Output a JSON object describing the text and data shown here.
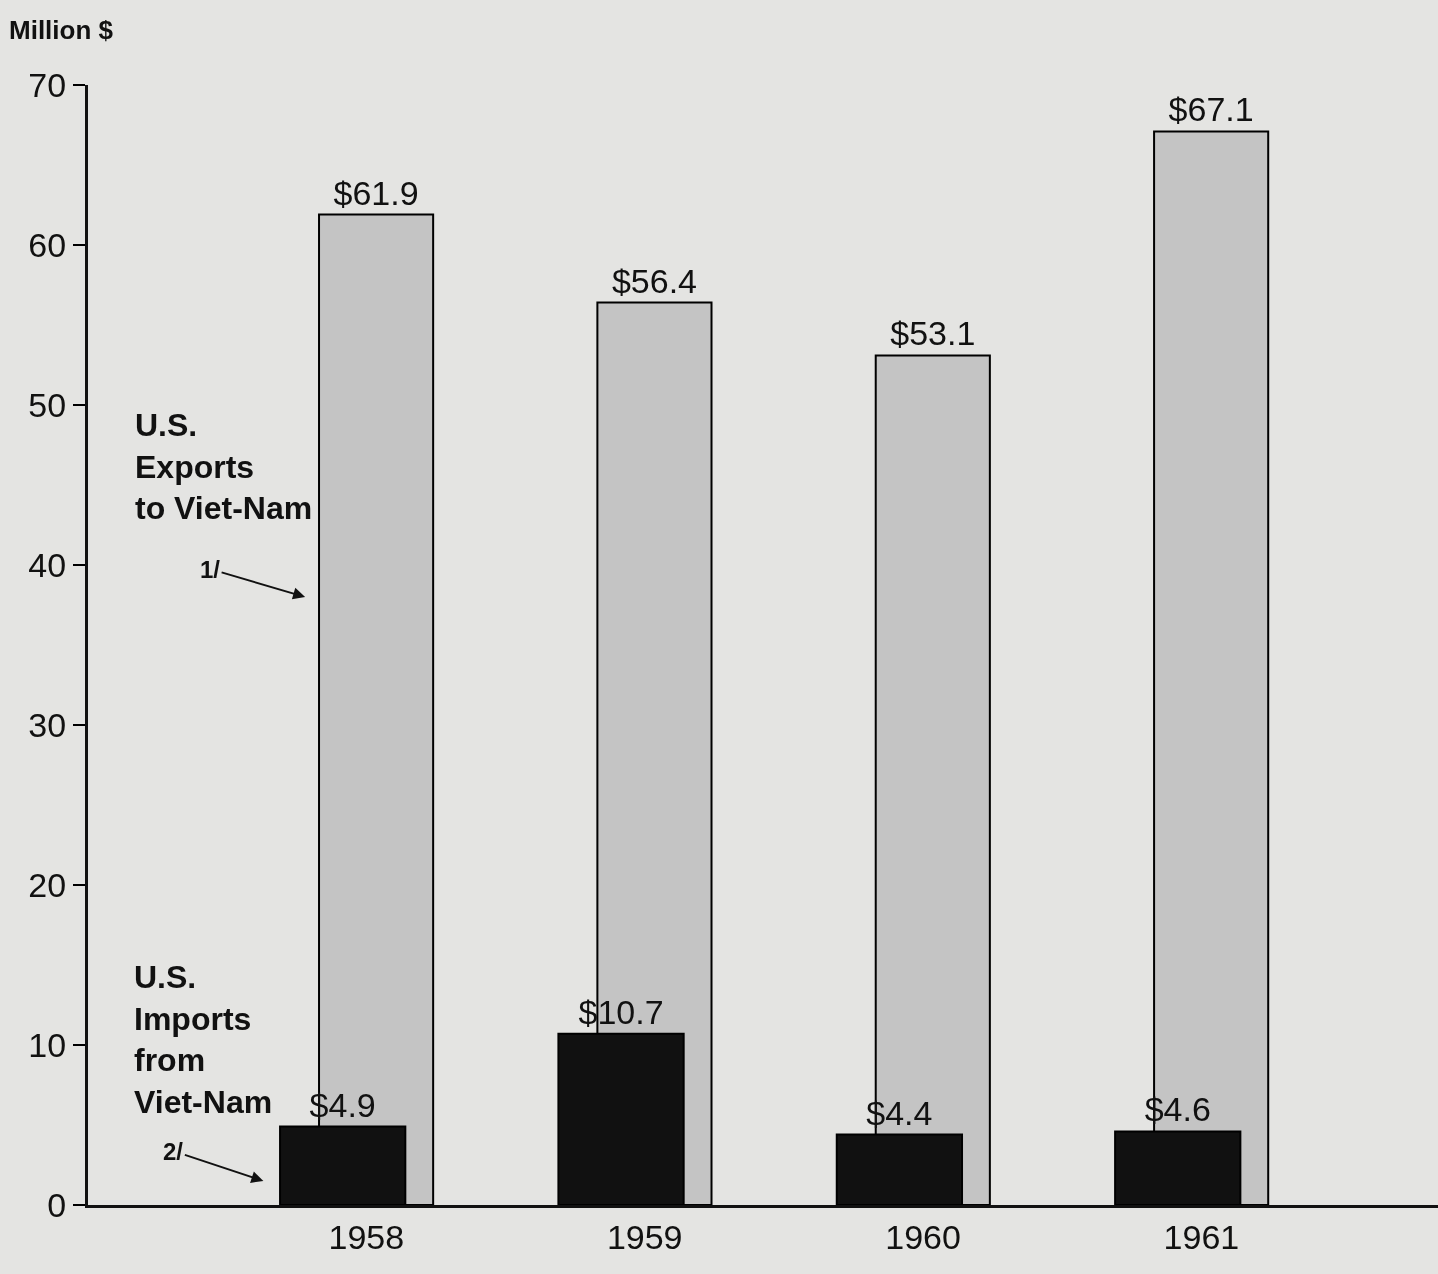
{
  "chart_data": {
    "type": "bar",
    "ylabel": "Million $",
    "categories": [
      "1958",
      "1959",
      "1960",
      "1961"
    ],
    "series": [
      {
        "name": "U.S. Exports to Viet-Nam",
        "color": "#c4c4c4",
        "values": [
          61.9,
          56.4,
          53.1,
          67.1
        ],
        "value_labels": [
          "$61.9",
          "$56.4",
          "$53.1",
          "$67.1"
        ]
      },
      {
        "name": "U.S. Imports from Viet-Nam",
        "color": "#111111",
        "values": [
          4.9,
          10.7,
          4.4,
          4.6
        ],
        "value_labels": [
          "$4.9",
          "$10.7",
          "$4.4",
          "$4.6"
        ]
      }
    ],
    "ylim": [
      0,
      70
    ],
    "yticks": [
      0,
      10,
      20,
      30,
      40,
      50,
      60,
      70
    ],
    "grid": false,
    "legend": "left",
    "annotations": [
      "1/",
      "2/"
    ]
  }
}
